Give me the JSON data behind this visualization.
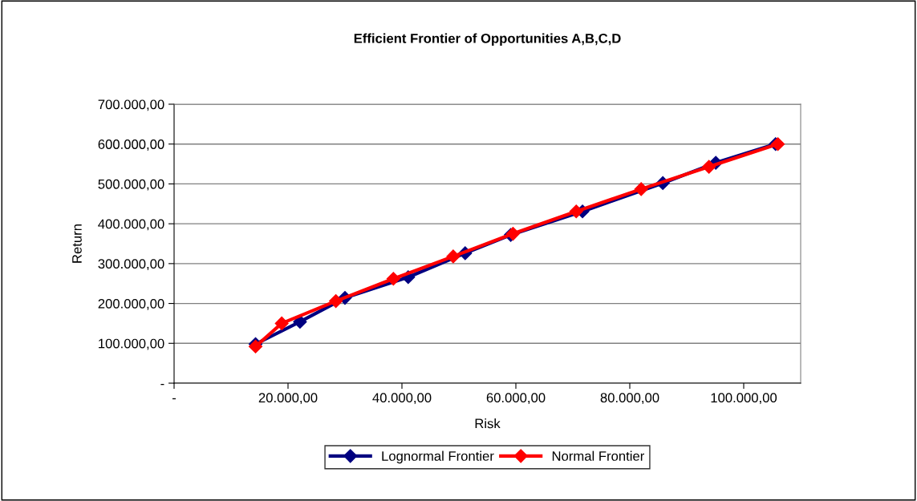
{
  "chart_data": {
    "type": "line",
    "title": "Efficient Frontier of Opportunities A,B,C,D",
    "xlabel": "Risk",
    "ylabel": "Return",
    "xlim": [
      0,
      110000
    ],
    "xticks": [
      {
        "value": 0,
        "label": "-"
      },
      {
        "value": 20000,
        "label": "20.000,00"
      },
      {
        "value": 40000,
        "label": "40.000,00"
      },
      {
        "value": 60000,
        "label": "60.000,00"
      },
      {
        "value": 80000,
        "label": "80.000,00"
      },
      {
        "value": 100000,
        "label": "100.000,00"
      }
    ],
    "ylim": [
      0,
      700000
    ],
    "yticks": [
      {
        "value": 0,
        "label": "-"
      },
      {
        "value": 100000,
        "label": "100.000,00"
      },
      {
        "value": 200000,
        "label": "200.000,00"
      },
      {
        "value": 300000,
        "label": "300.000,00"
      },
      {
        "value": 400000,
        "label": "400.000,00"
      },
      {
        "value": 500000,
        "label": "500.000,00"
      },
      {
        "value": 600000,
        "label": "600.000,00"
      },
      {
        "value": 700000,
        "label": "700.000,00"
      }
    ],
    "grid": "y",
    "legend": "bottom",
    "marker": "diamond",
    "line_style": "solid",
    "series": [
      {
        "name": "Lognormal Frontier",
        "color": "#000080",
        "x": [
          14300,
          22100,
          30000,
          41100,
          51100,
          59100,
          71700,
          85800,
          95100,
          105600
        ],
        "values": [
          98000,
          154000,
          214000,
          266000,
          326000,
          372000,
          431000,
          502000,
          553000,
          600000
        ]
      },
      {
        "name": "Normal Frontier",
        "color": "#ff0000",
        "x": [
          14300,
          18900,
          28400,
          38500,
          49000,
          59500,
          70600,
          82000,
          93900,
          106000
        ],
        "values": [
          92000,
          150000,
          206000,
          262000,
          318000,
          375000,
          431000,
          487000,
          543000,
          600000
        ]
      }
    ]
  }
}
